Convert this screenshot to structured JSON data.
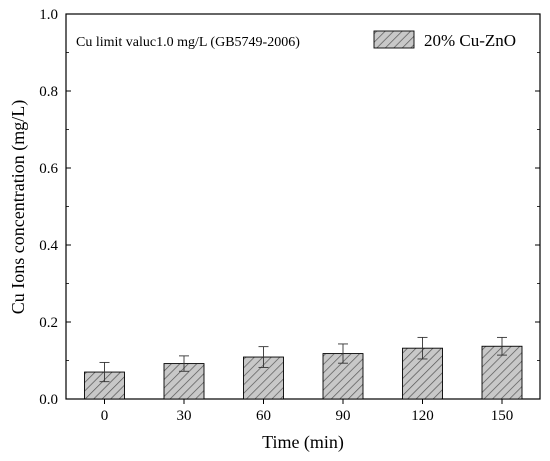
{
  "chart_data": {
    "type": "bar",
    "title": "",
    "xlabel": "Time (min)",
    "ylabel": "Cu Ions concentration (mg/L)",
    "categories": [
      "0",
      "30",
      "60",
      "90",
      "120",
      "150"
    ],
    "series": [
      {
        "name": "20% Cu-ZnO",
        "values": [
          0.07,
          0.092,
          0.109,
          0.118,
          0.132,
          0.137
        ],
        "errors": [
          0.025,
          0.02,
          0.027,
          0.025,
          0.028,
          0.023
        ]
      }
    ],
    "ylim": [
      0,
      1.0
    ],
    "yticks": [
      "0.0",
      "0.2",
      "0.4",
      "0.6",
      "0.8",
      "1.0"
    ],
    "annotation": "Cu limit valuc1.0 mg/L (GB5749-2006)",
    "legend_position": "top-right",
    "bar_fill": "hatched gray",
    "grid": false
  }
}
